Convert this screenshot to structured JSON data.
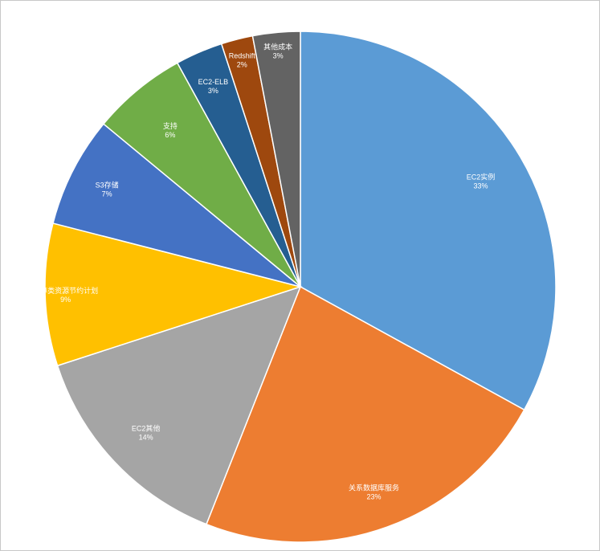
{
  "chart_data": {
    "type": "pie",
    "start_angle_deg": 0,
    "direction": "clockwise",
    "slices": [
      {
        "label": "EC2实例",
        "value": 33,
        "display": "33%",
        "color": "#5b9bd5"
      },
      {
        "label": "关系数据库服务",
        "value": 23,
        "display": "23%",
        "color": "#ed7d31"
      },
      {
        "label": "EC2其他",
        "value": 14,
        "display": "14%",
        "color": "#a5a5a5"
      },
      {
        "label": "计算类资源节约计划",
        "value": 9,
        "display": "9%",
        "color": "#ffc000"
      },
      {
        "label": "S3存储",
        "value": 7,
        "display": "7%",
        "color": "#4472c4"
      },
      {
        "label": "支持",
        "value": 6,
        "display": "6%",
        "color": "#70ad47"
      },
      {
        "label": "EC2-ELB",
        "value": 3,
        "display": "3%",
        "color": "#255e91"
      },
      {
        "label": "Redshift",
        "value": 2,
        "display": "2%",
        "color": "#9e480e"
      },
      {
        "label": "其他成本",
        "value": 3,
        "display": "3%",
        "color": "#636363"
      }
    ]
  }
}
